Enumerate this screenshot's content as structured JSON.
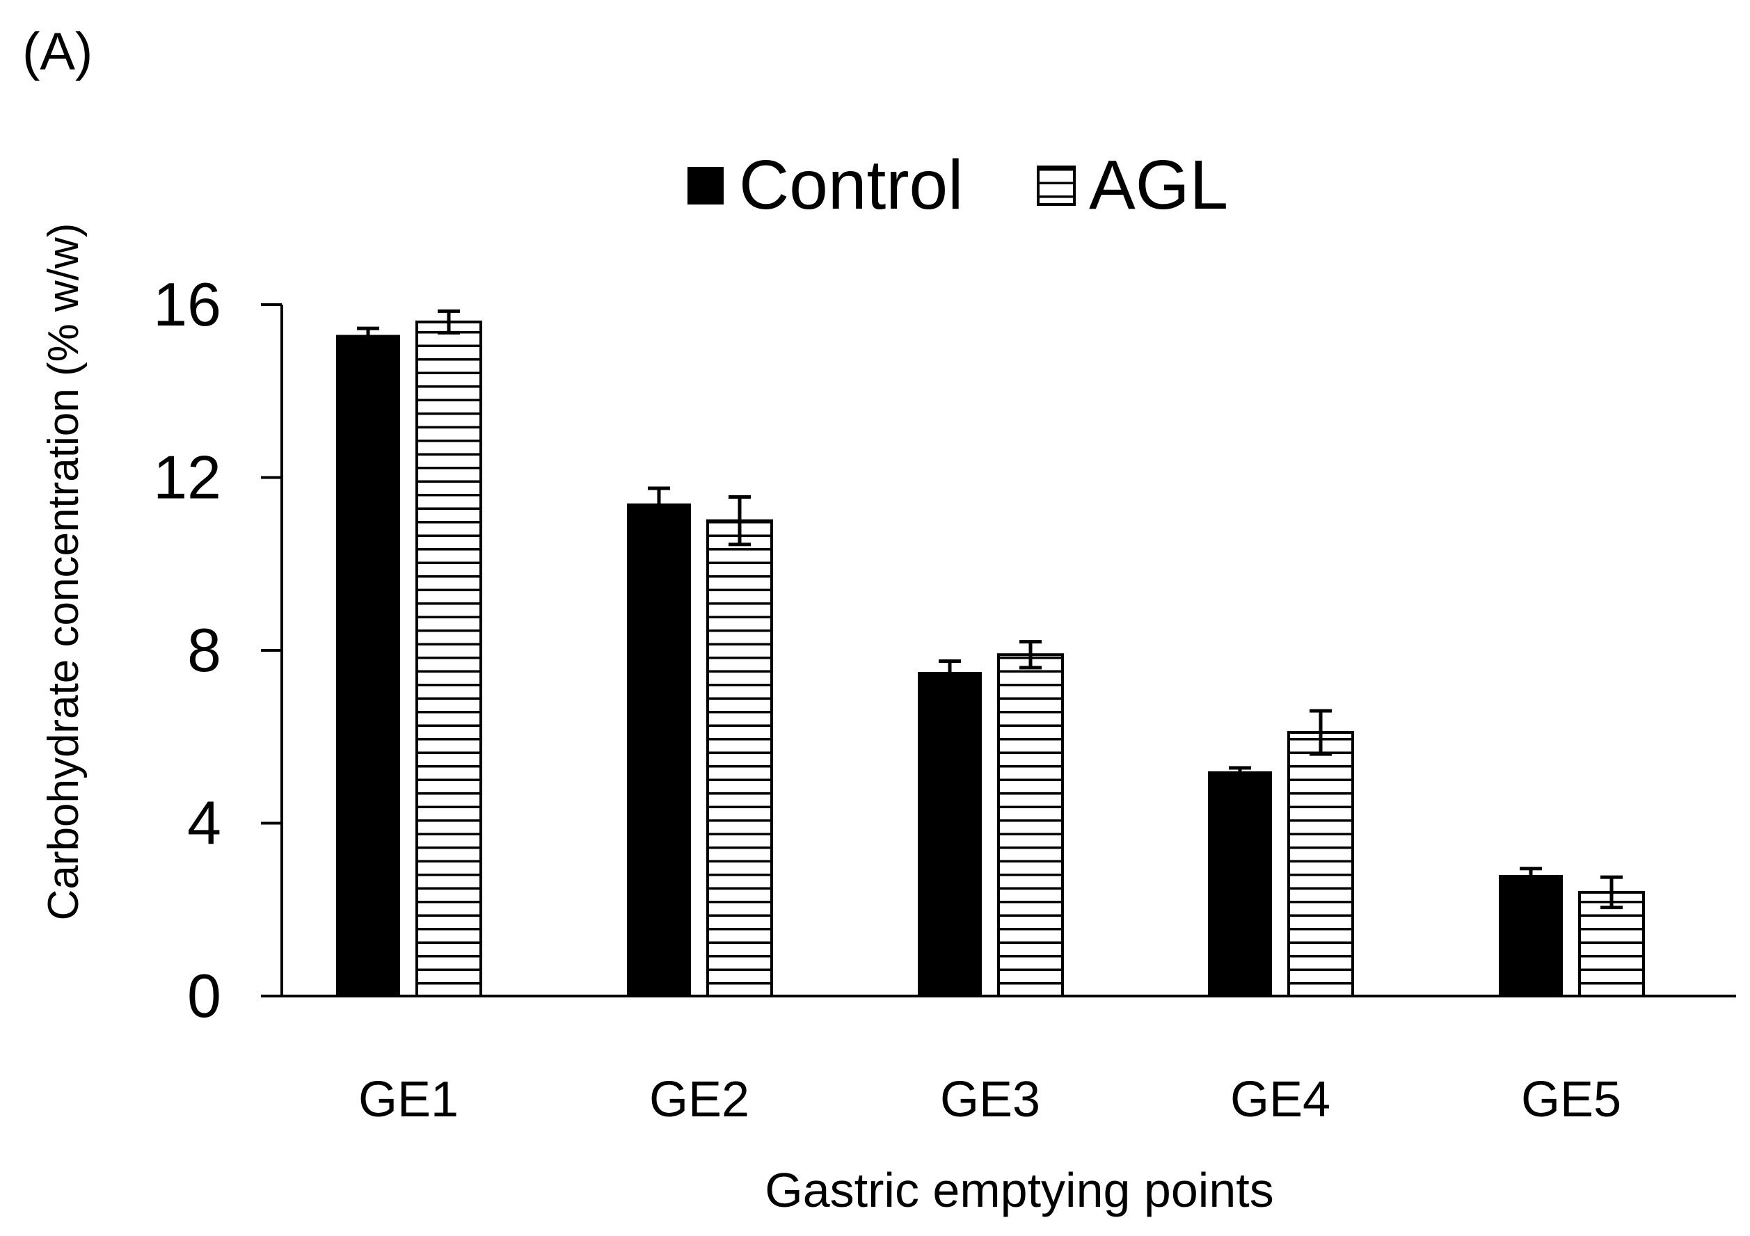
{
  "panel_label": "(A)",
  "chart_data": {
    "type": "bar",
    "title": "",
    "xlabel": "Gastric emptying points",
    "ylabel": "Carbohydrate concentration (% w/w)",
    "ylim": [
      0,
      16
    ],
    "yticks": [
      0,
      4,
      8,
      12,
      16
    ],
    "grid": false,
    "legend_position": "top-center",
    "categories": [
      "GE1",
      "GE2",
      "GE3",
      "GE4",
      "GE5"
    ],
    "series": [
      {
        "name": "Control",
        "fill": "solid",
        "color": "#000000",
        "values": [
          15.3,
          11.4,
          7.5,
          5.2,
          2.8
        ],
        "errors": [
          0.15,
          0.35,
          0.25,
          0.08,
          0.15
        ]
      },
      {
        "name": "AGL",
        "fill": "horizontal-stripes",
        "color": "#000000",
        "values": [
          15.6,
          11.0,
          7.9,
          6.1,
          2.4
        ],
        "errors": [
          0.25,
          0.55,
          0.3,
          0.5,
          0.35
        ]
      }
    ]
  }
}
